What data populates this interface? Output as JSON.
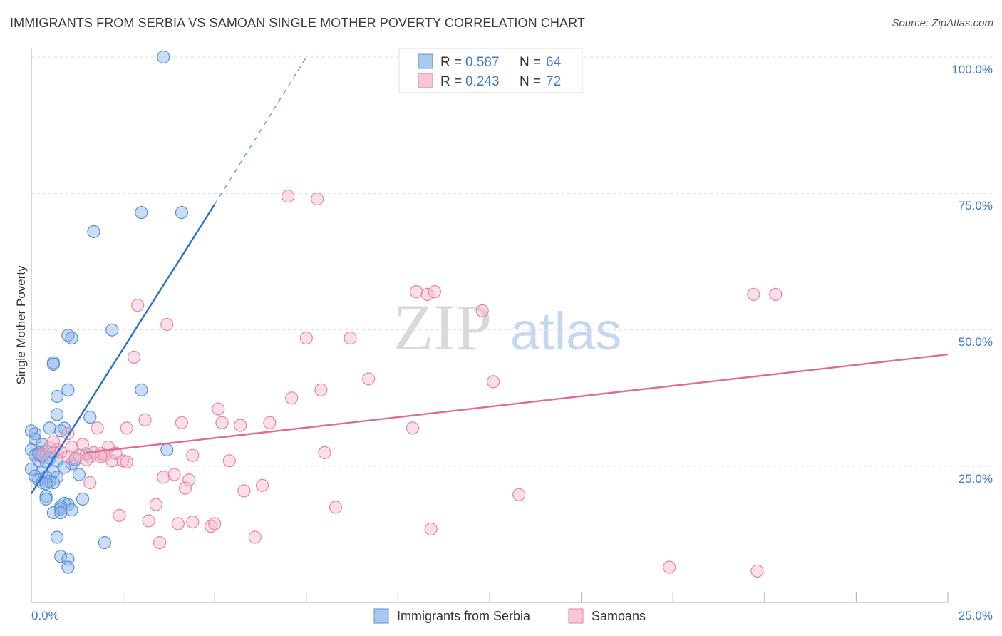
{
  "chart_data": {
    "type": "scatter",
    "title": "IMMIGRANTS FROM SERBIA VS SAMOAN SINGLE MOTHER POVERTY CORRELATION CHART",
    "source": "Source: ZipAtlas.com",
    "xlabel": "",
    "ylabel": "Single Mother Poverty",
    "xlim": [
      0,
      25
    ],
    "ylim": [
      0,
      105
    ],
    "x_tick_labels": [
      "0.0%",
      "25.0%"
    ],
    "y_ticks": [
      25,
      50,
      75,
      100
    ],
    "y_tick_labels": [
      "25.0%",
      "50.0%",
      "75.0%",
      "100.0%"
    ],
    "grid": true,
    "watermark": {
      "zip": "ZIP",
      "atlas": "atlas"
    },
    "legend_top": [
      {
        "r_label": "R = ",
        "r_value": "0.587",
        "n_label": "N = ",
        "n_value": "64"
      },
      {
        "r_label": "R = ",
        "r_value": "0.243",
        "n_label": "N = ",
        "n_value": "72"
      }
    ],
    "series": [
      {
        "name": "Immigrants from Serbia",
        "color": "#8ab4e8",
        "stroke": "#5a8fd6",
        "line_color": "#2f6fcc",
        "trend": {
          "x0": 0.0,
          "y0": 20.0,
          "x1": 5.0,
          "y1": 73.0,
          "dash_to_x": 7.5,
          "dash_to_y": 100.0
        },
        "points": [
          [
            3.6,
            100.0
          ],
          [
            3.0,
            71.5
          ],
          [
            4.1,
            71.5
          ],
          [
            1.7,
            68.0
          ],
          [
            2.2,
            50.0
          ],
          [
            1.0,
            49.0
          ],
          [
            1.1,
            48.5
          ],
          [
            0.6,
            44.0
          ],
          [
            0.6,
            43.7
          ],
          [
            1.0,
            39.0
          ],
          [
            3.0,
            39.0
          ],
          [
            0.7,
            37.8
          ],
          [
            0.7,
            34.5
          ],
          [
            1.6,
            34.0
          ],
          [
            0.5,
            32.0
          ],
          [
            0.9,
            32.0
          ],
          [
            0.8,
            31.5
          ],
          [
            0.1,
            31.0
          ],
          [
            0.0,
            31.5
          ],
          [
            0.1,
            30.0
          ],
          [
            0.3,
            29.0
          ],
          [
            0.0,
            28.0
          ],
          [
            0.2,
            27.5
          ],
          [
            0.4,
            27.8
          ],
          [
            0.6,
            27.5
          ],
          [
            1.5,
            27.3
          ],
          [
            0.1,
            27.0
          ],
          [
            0.3,
            26.8
          ],
          [
            0.5,
            26.5
          ],
          [
            0.2,
            26.0
          ],
          [
            0.7,
            26.0
          ],
          [
            1.1,
            25.5
          ],
          [
            3.7,
            28.0
          ],
          [
            0.0,
            24.5
          ],
          [
            0.3,
            24.0
          ],
          [
            0.6,
            24.0
          ],
          [
            0.1,
            23.2
          ],
          [
            0.4,
            23.0
          ],
          [
            0.7,
            23.0
          ],
          [
            1.3,
            23.5
          ],
          [
            0.2,
            22.5
          ],
          [
            0.5,
            22.2
          ],
          [
            0.3,
            22.0
          ],
          [
            0.6,
            22.0
          ],
          [
            0.4,
            21.8
          ],
          [
            0.4,
            19.5
          ],
          [
            0.4,
            19.0
          ],
          [
            1.4,
            19.0
          ],
          [
            0.9,
            18.2
          ],
          [
            1.0,
            18.0
          ],
          [
            0.8,
            17.6
          ],
          [
            0.8,
            17.2
          ],
          [
            1.1,
            17.0
          ],
          [
            0.6,
            16.5
          ],
          [
            0.8,
            16.5
          ],
          [
            0.7,
            12.0
          ],
          [
            2.0,
            11.0
          ],
          [
            0.8,
            8.5
          ],
          [
            1.0,
            8.0
          ],
          [
            1.0,
            6.5
          ],
          [
            0.2,
            27.2
          ],
          [
            0.4,
            25.8
          ],
          [
            0.9,
            24.8
          ],
          [
            1.2,
            26.2
          ]
        ]
      },
      {
        "name": "Samoans",
        "color": "#f4b6cb",
        "stroke": "#e8859f",
        "line_color": "#e06b95",
        "trend": {
          "x0": 1.5,
          "y0": 27.5,
          "x1": 25.0,
          "y1": 45.5
        },
        "points": [
          [
            7.0,
            74.5
          ],
          [
            7.8,
            74.0
          ],
          [
            10.5,
            57.0
          ],
          [
            10.8,
            56.5
          ],
          [
            11.0,
            57.0
          ],
          [
            19.7,
            56.5
          ],
          [
            20.3,
            56.5
          ],
          [
            2.9,
            54.5
          ],
          [
            12.3,
            53.5
          ],
          [
            3.7,
            51.0
          ],
          [
            7.5,
            48.5
          ],
          [
            8.7,
            48.5
          ],
          [
            2.8,
            45.0
          ],
          [
            9.2,
            41.0
          ],
          [
            12.6,
            40.5
          ],
          [
            7.9,
            39.0
          ],
          [
            7.1,
            37.5
          ],
          [
            5.1,
            35.5
          ],
          [
            3.1,
            33.5
          ],
          [
            4.1,
            33.0
          ],
          [
            5.2,
            33.0
          ],
          [
            5.7,
            32.5
          ],
          [
            6.5,
            33.0
          ],
          [
            1.8,
            32.0
          ],
          [
            2.6,
            32.0
          ],
          [
            10.4,
            32.0
          ],
          [
            1.0,
            31.0
          ],
          [
            1.4,
            29.0
          ],
          [
            1.1,
            28.5
          ],
          [
            2.1,
            28.5
          ],
          [
            0.5,
            28.5
          ],
          [
            0.7,
            28.0
          ],
          [
            1.7,
            27.5
          ],
          [
            1.9,
            27.3
          ],
          [
            0.3,
            27.2
          ],
          [
            1.3,
            27.0
          ],
          [
            2.0,
            27.0
          ],
          [
            4.4,
            27.0
          ],
          [
            8.0,
            27.5
          ],
          [
            1.0,
            26.8
          ],
          [
            1.6,
            26.7
          ],
          [
            1.2,
            26.5
          ],
          [
            2.2,
            26.0
          ],
          [
            2.5,
            26.0
          ],
          [
            2.6,
            25.8
          ],
          [
            5.4,
            26.0
          ],
          [
            3.6,
            23.0
          ],
          [
            3.9,
            23.5
          ],
          [
            4.3,
            22.5
          ],
          [
            1.6,
            22.0
          ],
          [
            4.2,
            21.0
          ],
          [
            6.3,
            21.5
          ],
          [
            5.8,
            20.5
          ],
          [
            13.3,
            19.8
          ],
          [
            3.4,
            18.0
          ],
          [
            8.3,
            17.5
          ],
          [
            2.4,
            16.0
          ],
          [
            3.2,
            15.0
          ],
          [
            4.0,
            14.5
          ],
          [
            4.4,
            14.8
          ],
          [
            4.9,
            14.0
          ],
          [
            5.0,
            14.5
          ],
          [
            10.9,
            13.5
          ],
          [
            6.1,
            12.0
          ],
          [
            3.5,
            11.0
          ],
          [
            17.4,
            6.5
          ],
          [
            19.8,
            5.8
          ],
          [
            0.8,
            27.6
          ],
          [
            1.5,
            26.2
          ],
          [
            2.3,
            27.4
          ],
          [
            0.6,
            29.5
          ],
          [
            1.9,
            26.8
          ]
        ]
      }
    ]
  }
}
